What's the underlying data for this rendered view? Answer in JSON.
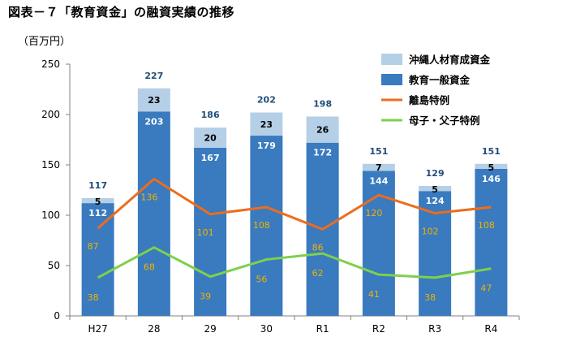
{
  "title": "図表－７「教育資金」の融資実績の推移",
  "unit": "（百万円）",
  "chart_data": {
    "type": "bar",
    "stacked": true,
    "categories": [
      "H27",
      "28",
      "29",
      "30",
      "R1",
      "R2",
      "R3",
      "R4"
    ],
    "ylim": [
      0,
      250
    ],
    "yticks": [
      0,
      50,
      100,
      150,
      200,
      250
    ],
    "grid": false,
    "legend_position": "top-right",
    "totals": [
      117,
      227,
      186,
      202,
      198,
      151,
      129,
      151
    ],
    "bar_series": [
      {
        "name": "教育一般資金",
        "values": [
          112,
          203,
          167,
          179,
          172,
          144,
          124,
          146
        ],
        "color": "#3a7abf",
        "label_color": "#ffffff"
      },
      {
        "name": "沖縄人材育成資金",
        "values": [
          5,
          23,
          20,
          23,
          26,
          7,
          5,
          5
        ],
        "color": "#b5cfe6",
        "label_color": "#000000"
      }
    ],
    "line_series": [
      {
        "name": "離島特例",
        "values": [
          87,
          136,
          101,
          108,
          86,
          120,
          102,
          108
        ],
        "color": "#ed6c1d",
        "label_color": "#f0b400"
      },
      {
        "name": "母子・父子特例",
        "values": [
          38,
          68,
          39,
          56,
          62,
          41,
          38,
          47
        ],
        "color": "#7ed04c",
        "label_color": "#f0b400"
      }
    ],
    "legend_order": [
      "沖縄人材育成資金",
      "教育一般資金",
      "離島特例",
      "母子・父子特例"
    ],
    "colors": {
      "total_label": "#1f4e79",
      "axis": "#808080"
    }
  }
}
